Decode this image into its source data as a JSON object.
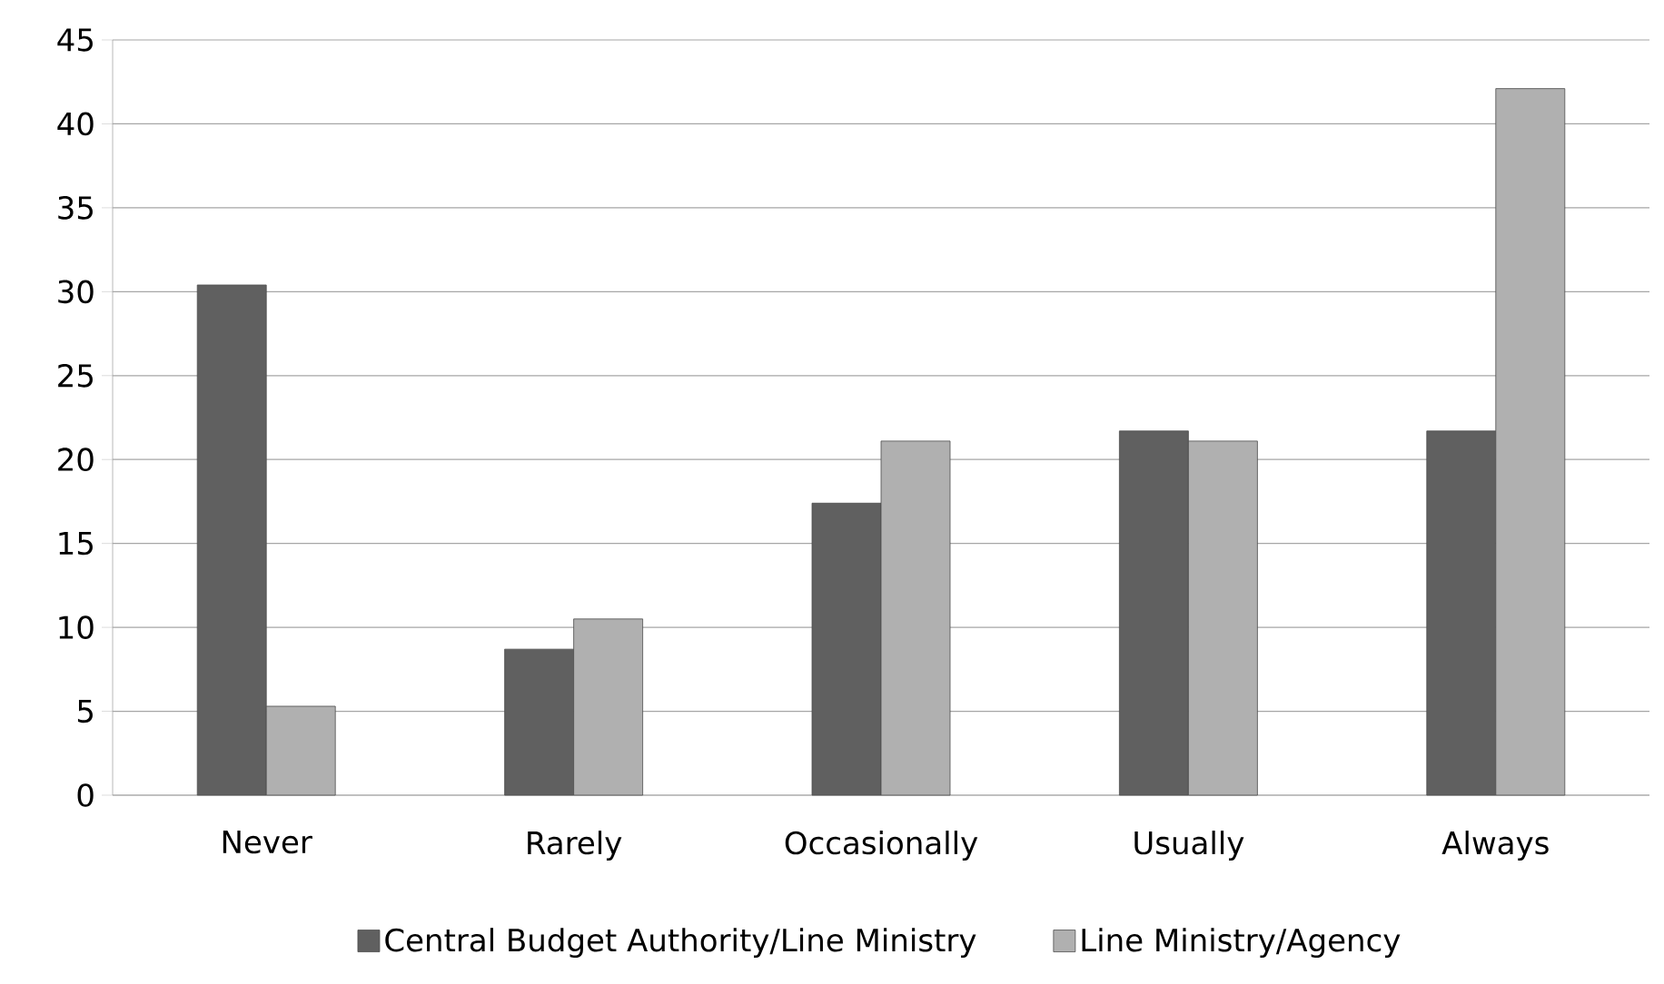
{
  "chart_data": {
    "type": "bar",
    "categories": [
      "Never",
      "Rarely",
      "Occasionally",
      "Usually",
      "Always"
    ],
    "series": [
      {
        "name": "Central Budget Authority/Line Ministry",
        "color": "#606060",
        "values": [
          30.4,
          8.7,
          17.4,
          21.7,
          21.7
        ]
      },
      {
        "name": "Line Ministry/Agency",
        "color": "#b0b0b0",
        "values": [
          5.3,
          10.5,
          21.1,
          21.1,
          42.1
        ]
      }
    ],
    "ylim": [
      0,
      45
    ],
    "yticks": [
      0,
      5,
      10,
      15,
      20,
      25,
      30,
      35,
      40,
      45
    ],
    "grid": "y",
    "legend": "bottom"
  }
}
